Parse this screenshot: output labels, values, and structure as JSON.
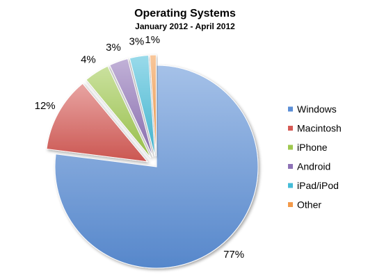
{
  "chart_data": {
    "type": "pie",
    "title": "Operating Systems",
    "subtitle": "January 2012 - April 2012",
    "legend_position": "right",
    "start_angle_deg": 0,
    "slices": [
      {
        "label": "Windows",
        "value": 77,
        "display": "77%",
        "color": "#5b8ed6",
        "exploded": false
      },
      {
        "label": "Macintosh",
        "value": 12,
        "display": "12%",
        "color": "#d65a55",
        "exploded": true
      },
      {
        "label": "iPhone",
        "value": 4,
        "display": "4%",
        "color": "#9fc84e",
        "exploded": true
      },
      {
        "label": "Android",
        "value": 3,
        "display": "3%",
        "color": "#8e72b6",
        "exploded": true
      },
      {
        "label": "iPad/iPod",
        "value": 3,
        "display": "3%",
        "color": "#45bcd8",
        "exploded": true
      },
      {
        "label": "Other",
        "value": 1,
        "display": "1%",
        "color": "#f39a4a",
        "exploded": true
      }
    ]
  }
}
